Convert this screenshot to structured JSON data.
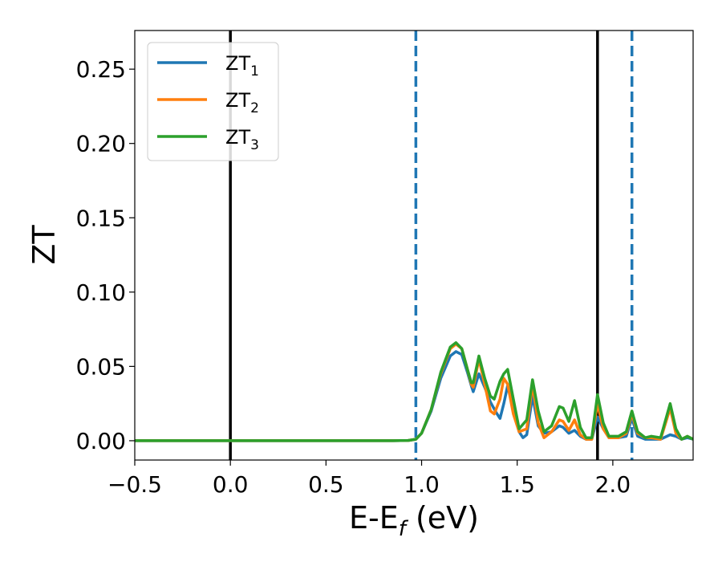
{
  "chart_data": {
    "type": "line",
    "xlabel": "E-E",
    "xlabel_subscript": "f",
    "xlabel_unit": " (eV)",
    "ylabel": "ZT",
    "xlim": [
      -0.5,
      2.42
    ],
    "ylim": [
      -0.013,
      0.276
    ],
    "x_ticks": [
      -0.5,
      0.0,
      0.5,
      1.0,
      1.5,
      2.0
    ],
    "x_tick_labels": [
      "−0.5",
      "0.0",
      "0.5",
      "1.0",
      "1.5",
      "2.0"
    ],
    "y_ticks": [
      0.0,
      0.05,
      0.1,
      0.15,
      0.2,
      0.25
    ],
    "y_tick_labels": [
      "0.00",
      "0.05",
      "0.10",
      "0.15",
      "0.20",
      "0.25"
    ],
    "grid": false,
    "legend_position": "top-left",
    "vertical_lines": [
      {
        "x": 0.0,
        "style": "solid",
        "color": "#000000"
      },
      {
        "x": 1.92,
        "style": "solid",
        "color": "#000000"
      },
      {
        "x": 0.97,
        "style": "dashed",
        "color": "#1f77b4"
      },
      {
        "x": 2.1,
        "style": "dashed",
        "color": "#1f77b4"
      }
    ],
    "series": [
      {
        "name": "ZT",
        "subscript": "1",
        "color": "#1f77b4",
        "points": [
          [
            -0.5,
            0
          ],
          [
            0.85,
            0
          ],
          [
            0.93,
            0.0002
          ],
          [
            0.97,
            0.001
          ],
          [
            1.0,
            0.005
          ],
          [
            1.05,
            0.02
          ],
          [
            1.1,
            0.042
          ],
          [
            1.15,
            0.057
          ],
          [
            1.18,
            0.06
          ],
          [
            1.21,
            0.058
          ],
          [
            1.24,
            0.046
          ],
          [
            1.26,
            0.037
          ],
          [
            1.27,
            0.033
          ],
          [
            1.3,
            0.045
          ],
          [
            1.33,
            0.036
          ],
          [
            1.36,
            0.026
          ],
          [
            1.39,
            0.019
          ],
          [
            1.41,
            0.015
          ],
          [
            1.43,
            0.025
          ],
          [
            1.45,
            0.037
          ],
          [
            1.48,
            0.022
          ],
          [
            1.51,
            0.006
          ],
          [
            1.53,
            0.002
          ],
          [
            1.55,
            0.004
          ],
          [
            1.58,
            0.03
          ],
          [
            1.61,
            0.01
          ],
          [
            1.64,
            0.005
          ],
          [
            1.68,
            0.006
          ],
          [
            1.72,
            0.01
          ],
          [
            1.74,
            0.009
          ],
          [
            1.77,
            0.005
          ],
          [
            1.8,
            0.007
          ],
          [
            1.83,
            0.003
          ],
          [
            1.86,
            0.001
          ],
          [
            1.89,
            0.001
          ],
          [
            1.92,
            0.016
          ],
          [
            1.95,
            0.008
          ],
          [
            1.98,
            0.002
          ],
          [
            2.03,
            0.002
          ],
          [
            2.07,
            0.003
          ],
          [
            2.1,
            0.015
          ],
          [
            2.13,
            0.003
          ],
          [
            2.17,
            0.001
          ],
          [
            2.2,
            0.001
          ],
          [
            2.25,
            0.001
          ],
          [
            2.3,
            0.004
          ],
          [
            2.33,
            0.003
          ],
          [
            2.36,
            0.001
          ],
          [
            2.39,
            0.002
          ],
          [
            2.42,
            0.001
          ]
        ]
      },
      {
        "name": "ZT",
        "subscript": "2",
        "color": "#ff7f0e",
        "points": [
          [
            -0.5,
            0
          ],
          [
            0.85,
            0
          ],
          [
            0.93,
            0.0002
          ],
          [
            0.97,
            0.001
          ],
          [
            1.0,
            0.005
          ],
          [
            1.05,
            0.021
          ],
          [
            1.1,
            0.045
          ],
          [
            1.15,
            0.062
          ],
          [
            1.18,
            0.065
          ],
          [
            1.21,
            0.062
          ],
          [
            1.24,
            0.048
          ],
          [
            1.26,
            0.038
          ],
          [
            1.27,
            0.036
          ],
          [
            1.3,
            0.055
          ],
          [
            1.33,
            0.038
          ],
          [
            1.36,
            0.02
          ],
          [
            1.38,
            0.018
          ],
          [
            1.41,
            0.028
          ],
          [
            1.43,
            0.042
          ],
          [
            1.45,
            0.038
          ],
          [
            1.48,
            0.018
          ],
          [
            1.51,
            0.006
          ],
          [
            1.55,
            0.008
          ],
          [
            1.58,
            0.038
          ],
          [
            1.61,
            0.012
          ],
          [
            1.64,
            0.002
          ],
          [
            1.68,
            0.006
          ],
          [
            1.72,
            0.014
          ],
          [
            1.74,
            0.013
          ],
          [
            1.77,
            0.007
          ],
          [
            1.8,
            0.014
          ],
          [
            1.83,
            0.004
          ],
          [
            1.86,
            0.001
          ],
          [
            1.89,
            0.001
          ],
          [
            1.92,
            0.025
          ],
          [
            1.95,
            0.008
          ],
          [
            1.98,
            0.002
          ],
          [
            2.03,
            0.002
          ],
          [
            2.07,
            0.005
          ],
          [
            2.1,
            0.018
          ],
          [
            2.13,
            0.005
          ],
          [
            2.17,
            0.002
          ],
          [
            2.2,
            0.002
          ],
          [
            2.25,
            0.001
          ],
          [
            2.3,
            0.022
          ],
          [
            2.33,
            0.005
          ],
          [
            2.36,
            0.001
          ],
          [
            2.39,
            0.003
          ],
          [
            2.42,
            0.001
          ]
        ]
      },
      {
        "name": "ZT",
        "subscript": "3",
        "color": "#2ca02c",
        "points": [
          [
            -0.5,
            0
          ],
          [
            0.85,
            0
          ],
          [
            0.93,
            0.0002
          ],
          [
            0.97,
            0.001
          ],
          [
            1.0,
            0.005
          ],
          [
            1.05,
            0.021
          ],
          [
            1.1,
            0.046
          ],
          [
            1.15,
            0.063
          ],
          [
            1.18,
            0.066
          ],
          [
            1.21,
            0.062
          ],
          [
            1.24,
            0.048
          ],
          [
            1.26,
            0.039
          ],
          [
            1.27,
            0.039
          ],
          [
            1.3,
            0.057
          ],
          [
            1.33,
            0.042
          ],
          [
            1.36,
            0.03
          ],
          [
            1.38,
            0.028
          ],
          [
            1.41,
            0.04
          ],
          [
            1.43,
            0.045
          ],
          [
            1.45,
            0.048
          ],
          [
            1.48,
            0.028
          ],
          [
            1.51,
            0.008
          ],
          [
            1.55,
            0.014
          ],
          [
            1.58,
            0.041
          ],
          [
            1.61,
            0.02
          ],
          [
            1.64,
            0.006
          ],
          [
            1.68,
            0.01
          ],
          [
            1.72,
            0.023
          ],
          [
            1.74,
            0.022
          ],
          [
            1.77,
            0.013
          ],
          [
            1.8,
            0.027
          ],
          [
            1.83,
            0.009
          ],
          [
            1.86,
            0.002
          ],
          [
            1.89,
            0.002
          ],
          [
            1.92,
            0.031
          ],
          [
            1.95,
            0.012
          ],
          [
            1.98,
            0.003
          ],
          [
            2.03,
            0.003
          ],
          [
            2.07,
            0.006
          ],
          [
            2.1,
            0.02
          ],
          [
            2.13,
            0.006
          ],
          [
            2.17,
            0.002
          ],
          [
            2.2,
            0.003
          ],
          [
            2.25,
            0.002
          ],
          [
            2.3,
            0.025
          ],
          [
            2.33,
            0.008
          ],
          [
            2.36,
            0.001
          ],
          [
            2.39,
            0.003
          ],
          [
            2.42,
            0.001
          ]
        ]
      }
    ]
  }
}
